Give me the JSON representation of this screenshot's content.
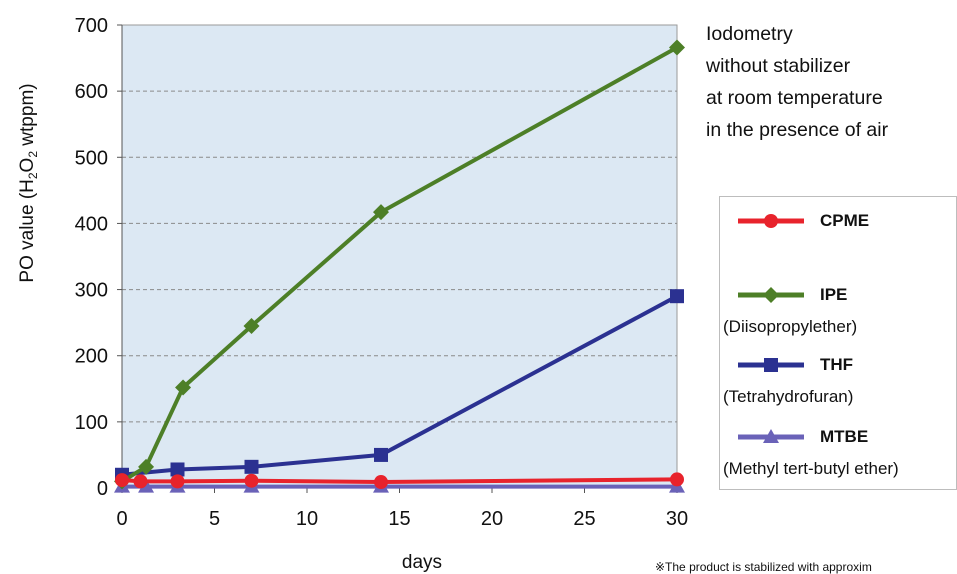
{
  "chart_data": {
    "type": "line",
    "xlabel": "days",
    "ylabel_parts": {
      "before": "PO value (H",
      "sub1": "2",
      "mid": "O",
      "sub2": "2",
      "after": " wtppm)"
    },
    "xlim": [
      0,
      30
    ],
    "ylim": [
      0,
      700
    ],
    "x_ticks": [
      0,
      5,
      10,
      15,
      20,
      25,
      30
    ],
    "y_ticks": [
      0,
      100,
      200,
      300,
      400,
      500,
      600,
      700
    ],
    "y_grid": "dashed",
    "plot_background": "#dce8f3",
    "legend_position": "right",
    "series": [
      {
        "key": "mtbe",
        "name": "MTBE",
        "subtitle": "(Methyl tert-butyl ether)",
        "color": "#6a62b8",
        "marker": "triangle",
        "x": [
          0,
          1.3,
          3,
          7,
          14,
          30
        ],
        "y": [
          2,
          2,
          2,
          2,
          2,
          2
        ]
      },
      {
        "key": "thf",
        "name": "THF",
        "subtitle": "(Tetrahydrofuran)",
        "color": "#2b3191",
        "marker": "square",
        "x": [
          0,
          3,
          7,
          14,
          30
        ],
        "y": [
          20,
          28,
          32,
          50,
          290
        ]
      },
      {
        "key": "ipe",
        "name": "IPE",
        "subtitle": "(Diisopropylether)",
        "color": "#4d7f27",
        "marker": "diamond",
        "x": [
          0,
          1.3,
          3.3,
          7,
          14,
          30
        ],
        "y": [
          10,
          32,
          152,
          245,
          417,
          666
        ]
      },
      {
        "key": "cpme",
        "name": "CPME",
        "subtitle": "",
        "color": "#e8232c",
        "marker": "circle",
        "x": [
          0,
          1,
          3,
          7,
          14,
          30
        ],
        "y": [
          12,
          10,
          10,
          11,
          9,
          13
        ]
      }
    ],
    "annotation": [
      "Iodometry",
      "without stabilizer",
      "at room temperature",
      "in the presence of air"
    ],
    "footnote": "※The product is stabilized with approxim"
  }
}
